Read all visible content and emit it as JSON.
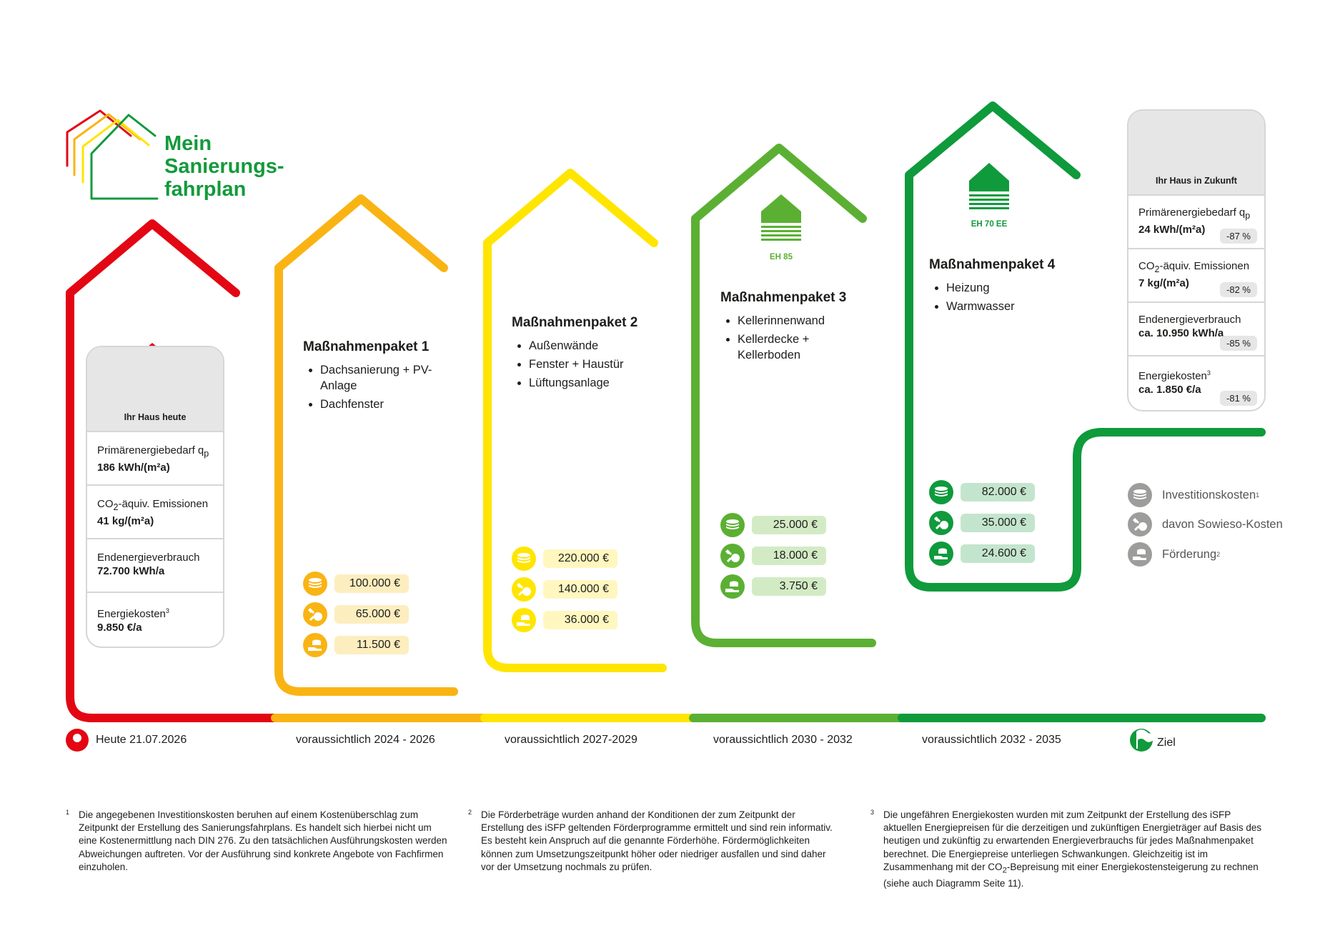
{
  "logo": {
    "title_lines": [
      "Mein",
      "Sanierungs-",
      "fahrplan"
    ]
  },
  "colors": {
    "red": "#e30613",
    "orange": "#f9b414",
    "yellow": "#ffe500",
    "light_green": "#5bb033",
    "green": "#0f9a3c",
    "grey": "#9d9d9c"
  },
  "today_card": {
    "label": "Ihr Haus heute",
    "rows": [
      {
        "label": "Primärenergiebedarf q",
        "sub": "p",
        "value": "186 kWh/(m²a)"
      },
      {
        "label_pre": "CO",
        "label_sub": "2",
        "label_post": "-äquiv. Emissionen",
        "value": "41 kg/(m²a)"
      },
      {
        "label": "Endenergieverbrauch",
        "value": "72.700 kWh/a"
      },
      {
        "label": "Energiekosten",
        "sup": "3",
        "value": "9.850 €/a"
      }
    ]
  },
  "future_card": {
    "label": "Ihr Haus in Zukunft",
    "rows": [
      {
        "label": "Primärenergiebedarf q",
        "sub": "p",
        "value": "24 kWh/(m²a)",
        "pct": "-87 %"
      },
      {
        "label_pre": "CO",
        "label_sub": "2",
        "label_post": "-äquiv. Emissionen",
        "value": "7 kg/(m²a)",
        "pct": "-82 %"
      },
      {
        "label": "Endenergieverbrauch",
        "value": "ca. 10.950 kWh/a",
        "pct": "-85 %"
      },
      {
        "label": "Energiekosten",
        "sup": "3",
        "value": "ca. 1.850 €/a",
        "pct": "-81 %"
      }
    ]
  },
  "packages": [
    {
      "title": "Maßnahmenpaket 1",
      "items": [
        "Dachsanierung + PV-Anlage",
        "Dachfenster"
      ],
      "costs": {
        "invest": "100.000 €",
        "sowieso": "65.000 €",
        "foerderung": "11.500 €"
      }
    },
    {
      "title": "Maßnahmenpaket 2",
      "items": [
        "Außenwände",
        "Fenster + Haustür",
        "Lüftungsanlage"
      ],
      "costs": {
        "invest": "220.000 €",
        "sowieso": "140.000 €",
        "foerderung": "36.000 €"
      }
    },
    {
      "title": "Maßnahmenpaket 3",
      "items": [
        "Kellerinnenwand",
        "Kellerdecke + Kellerboden"
      ],
      "eh_label": "EH 85",
      "costs": {
        "invest": "25.000 €",
        "sowieso": "18.000 €",
        "foerderung": "3.750 €"
      }
    },
    {
      "title": "Maßnahmenpaket 4",
      "items": [
        "Heizung",
        "Warmwasser"
      ],
      "eh_label": "EH 70 EE",
      "costs": {
        "invest": "82.000 €",
        "sowieso": "35.000 €",
        "foerderung": "24.600 €"
      }
    }
  ],
  "timeline": {
    "today": "Heute 21.07.2026",
    "periods": [
      "voraussichtlich 2024 - 2026",
      "voraussichtlich 2027-2029",
      "voraussichtlich 2030 - 2032",
      "voraussichtlich 2032 - 2035"
    ],
    "goal": "Ziel"
  },
  "legend": [
    {
      "label": "Investitionskosten",
      "sup": "1",
      "icon": "coins-icon"
    },
    {
      "label": "davon Sowieso-Kosten",
      "sup": "",
      "icon": "wrench-coins-icon"
    },
    {
      "label": "Förderung",
      "sup": "2",
      "icon": "hand-coins-icon"
    }
  ],
  "footnotes": [
    {
      "num": "1",
      "text": "Die angegebenen Investitionskosten beruhen auf einem Kostenüberschlag zum Zeitpunkt der Erstellung des Sanierungsfahrplans. Es handelt sich hierbei nicht um eine Kostenermittlung nach DIN 276. Zu den tatsächlichen Ausführungskosten werden Abweichungen auftreten. Vor der Ausführung sind konkrete Angebote von Fachfirmen einzuholen."
    },
    {
      "num": "2",
      "text": "Die Förderbeträge wurden anhand der Konditionen der zum Zeitpunkt der Erstellung des iSFP geltenden Förderprogramme ermittelt und sind rein informativ. Es besteht kein Anspruch auf die genannte Förderhöhe. Fördermöglichkeiten können zum Umsetzungszeitpunkt höher oder niedriger ausfallen und sind daher vor der Umsetzung nochmals zu prüfen."
    },
    {
      "num": "3",
      "text_pre": "Die ungefähren Energiekosten wurden mit zum Zeitpunkt der Erstellung des iSFP aktuellen Energiepreisen für die derzeitigen und zukünftigen Energieträger auf Basis des heutigen und zukünftig zu erwartenden Energieverbrauchs für jedes Maßnahmenpaket berechnet. Die Energiepreise unterliegen Schwankungen. Gleichzeitig ist im Zusammenhang mit der CO",
      "text_sub": "2",
      "text_post": "-Bepreisung mit einer Energiekostensteigerung zu rechnen (siehe auch Diagramm Seite 11)."
    }
  ]
}
